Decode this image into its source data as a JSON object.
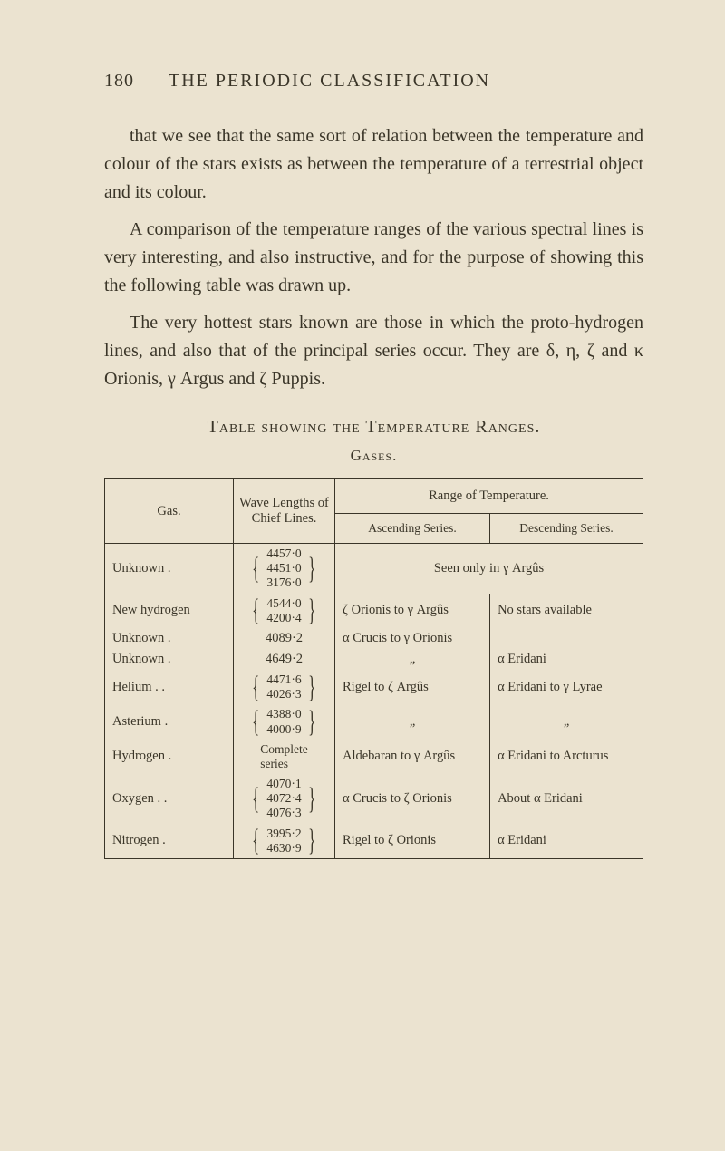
{
  "page_number": "180",
  "running_title": "THE PERIODIC CLASSIFICATION",
  "para1": "that we see that the same sort of relation between the temperature and colour of the stars exists as between the temperature of a terrestrial object and its colour.",
  "para2": "A comparison of the temperature ranges of the various spectral lines is very interesting, and also instructive, and for the purpose of showing this the following table was drawn up.",
  "para3": "The very hottest stars known are those in which the proto-hydrogen lines, and also that of the principal series occur. They are δ, η, ζ and κ Orionis, γ Argus and ζ Puppis.",
  "table_title": "Table showing the Temperature Ranges.",
  "table_subtitle": "Gases.",
  "headers": {
    "gas": "Gas.",
    "wave": "Wave Lengths of Chief Lines.",
    "range": "Range of Temperature.",
    "asc": "Ascending Series.",
    "desc": "Descending Series."
  },
  "rows": [
    {
      "gas": "Unknown    .",
      "wave": [
        "4457·0",
        "4451·0",
        "3176·0"
      ],
      "asc_merged": "Seen only in γ Argûs",
      "desc": ""
    },
    {
      "gas": "New hydrogen",
      "wave": [
        "4544·0",
        "4200·4"
      ],
      "asc": "ζ Orionis to γ Argûs",
      "desc": "No stars available"
    },
    {
      "gas": "Unknown    .",
      "wave": [
        "4089·2"
      ],
      "asc": "α Crucis to γ Orionis",
      "desc": ""
    },
    {
      "gas": "Unknown    .",
      "wave": [
        "4649·2"
      ],
      "asc": "„",
      "desc": "α Eridani"
    },
    {
      "gas": "Helium .     .",
      "wave": [
        "4471·6",
        "4026·3"
      ],
      "asc": "Rigel to ζ Argûs",
      "desc": "α Eridani to γ Lyrae"
    },
    {
      "gas": "Asterium    .",
      "wave": [
        "4388·0",
        "4000·9"
      ],
      "asc": "„",
      "desc": "„"
    },
    {
      "gas": "Hydrogen   .",
      "wave": [
        "Complete",
        "series"
      ],
      "asc": "Aldebaran to γ Argûs",
      "desc": "α Eridani to Arcturus"
    },
    {
      "gas": "Oxygen .    .",
      "wave": [
        "4070·1",
        "4072·4",
        "4076·3"
      ],
      "asc": "α Crucis to ζ Orionis",
      "desc": "About α Eridani"
    },
    {
      "gas": "Nitrogen    .",
      "wave": [
        "3995·2",
        "4630·9"
      ],
      "asc": "Rigel to ζ Orionis",
      "desc": "α Eridani"
    }
  ],
  "colors": {
    "background": "#ebe3d0",
    "text": "#3a3528",
    "rule": "#3a3528"
  }
}
